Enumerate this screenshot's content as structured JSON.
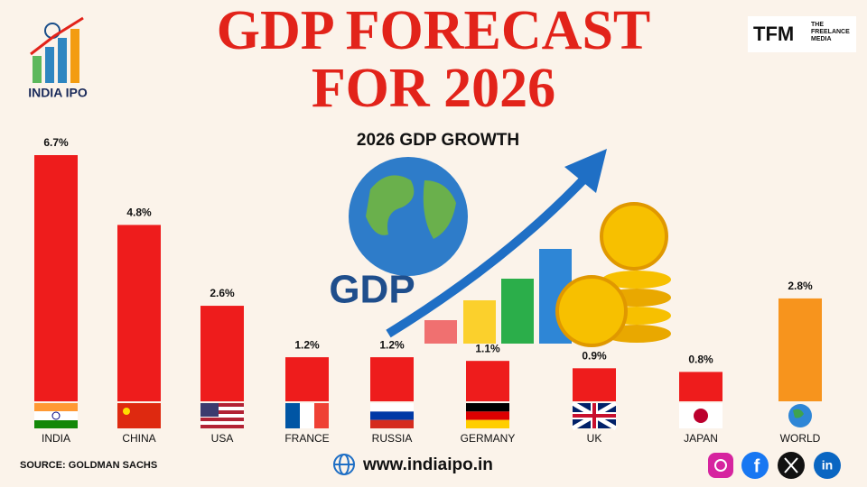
{
  "chart_data": {
    "type": "bar",
    "title": "GDP FORECAST FOR 2026",
    "subtitle": "2026 GDP GROWTH",
    "categories": [
      "INDIA",
      "CHINA",
      "USA",
      "FRANCE",
      "RUSSIA",
      "GERMANY",
      "UK",
      "JAPAN",
      "WORLD"
    ],
    "values": [
      6.7,
      4.8,
      2.6,
      1.2,
      1.2,
      1.1,
      0.9,
      0.8,
      2.8
    ],
    "value_labels": [
      "6.7%",
      "4.8%",
      "2.6%",
      "1.2%",
      "1.2%",
      "1.1%",
      "0.9%",
      "0.8%",
      "2.8%"
    ],
    "colors": [
      "#ee1c1c",
      "#ee1c1c",
      "#ee1c1c",
      "#ee1c1c",
      "#ee1c1c",
      "#ee1c1c",
      "#ee1c1c",
      "#ee1c1c",
      "#f7941d"
    ],
    "source": "SOURCE: GOLDMAN SACHS"
  },
  "branding": {
    "left_logo": "INDIA IPO",
    "right_logo_mark": "TFM",
    "right_logo_text": "THE FREELANCE MEDIA",
    "illustration_text": "GDP"
  },
  "footer": {
    "website": "www.indiaipo.in"
  }
}
